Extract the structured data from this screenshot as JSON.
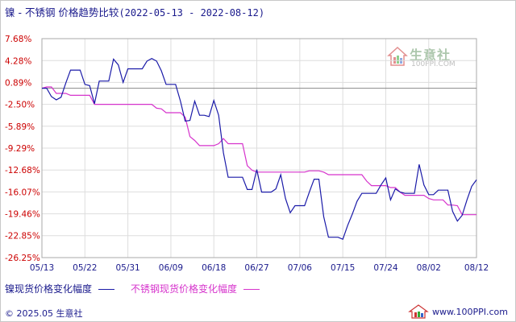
{
  "title": {
    "main": "镍 - 不锈钢 价格趋势比较",
    "range": "(2022-05-13 - 2022-08-12)"
  },
  "watermark": {
    "text": "生意社",
    "sub": "100PPI.COM"
  },
  "footer": {
    "copyright": "© 2025.05 生意社",
    "site": "www.100PPI.com"
  },
  "colors": {
    "nickel": "#1a1aa8",
    "stainless": "#d633cc",
    "tick_y": "#cc0000",
    "text": "#1a1a8c",
    "zero_line": "#888888",
    "grid": "#dddddd"
  },
  "chart_data": {
    "type": "line",
    "title": "镍 - 不锈钢 价格趋势比较",
    "xlabel": "",
    "ylabel": "",
    "y_ticks": [
      "7.68%",
      "4.28%",
      "0.89%",
      "-2.50%",
      "-5.89%",
      "-9.29%",
      "-12.68%",
      "-16.07%",
      "-19.46%",
      "-22.85%",
      "-26.25%"
    ],
    "y_tick_values": [
      7.68,
      4.28,
      0.89,
      -2.5,
      -5.89,
      -9.29,
      -12.68,
      -16.07,
      -19.46,
      -22.85,
      -26.25
    ],
    "ylim": [
      -26.25,
      7.68
    ],
    "x_ticks": [
      "05/13",
      "05/22",
      "05/31",
      "06/09",
      "06/18",
      "06/27",
      "07/06",
      "07/15",
      "07/24",
      "08/02",
      "08/12"
    ],
    "x_range": [
      "05/13",
      "08/12"
    ],
    "x_tick_days": [
      0,
      9,
      18,
      27,
      36,
      45,
      54,
      63,
      72,
      81,
      91
    ],
    "xlim_days": [
      0,
      91
    ],
    "zero_line": 0,
    "grid": true,
    "legend_position": "bottom",
    "series": [
      {
        "name": "镍现货价格变化幅度",
        "color": "#1a1aa8",
        "points": [
          [
            0,
            0
          ],
          [
            1,
            0
          ],
          [
            2,
            -1.3
          ],
          [
            3,
            -1.8
          ],
          [
            4,
            -1.4
          ],
          [
            5,
            0.8
          ],
          [
            6,
            2.8
          ],
          [
            7,
            2.8
          ],
          [
            8,
            2.8
          ],
          [
            9,
            0.6
          ],
          [
            10,
            0.4
          ],
          [
            11,
            -2.4
          ],
          [
            12,
            1.1
          ],
          [
            13,
            1.1
          ],
          [
            14,
            1.1
          ],
          [
            15,
            4.5
          ],
          [
            16,
            3.6
          ],
          [
            17,
            0.9
          ],
          [
            18,
            3.0
          ],
          [
            19,
            3.0
          ],
          [
            20,
            3.0
          ],
          [
            21,
            3.0
          ],
          [
            22,
            4.2
          ],
          [
            23,
            4.6
          ],
          [
            24,
            4.2
          ],
          [
            25,
            2.7
          ],
          [
            26,
            0.6
          ],
          [
            27,
            0.6
          ],
          [
            28,
            0.6
          ],
          [
            29,
            -2.0
          ],
          [
            30,
            -5.1
          ],
          [
            31,
            -5.0
          ],
          [
            32,
            -2.0
          ],
          [
            33,
            -4.2
          ],
          [
            34,
            -4.2
          ],
          [
            35,
            -4.4
          ],
          [
            36,
            -1.9
          ],
          [
            37,
            -4.2
          ],
          [
            38,
            -10.0
          ],
          [
            39,
            -13.8
          ],
          [
            40,
            -13.8
          ],
          [
            41,
            -13.8
          ],
          [
            42,
            -13.8
          ],
          [
            43,
            -15.7
          ],
          [
            44,
            -15.7
          ],
          [
            45,
            -12.6
          ],
          [
            46,
            -16.1
          ],
          [
            47,
            -16.1
          ],
          [
            48,
            -16.1
          ],
          [
            49,
            -15.6
          ],
          [
            50,
            -13.4
          ],
          [
            51,
            -17.1
          ],
          [
            52,
            -19.3
          ],
          [
            53,
            -18.2
          ],
          [
            54,
            -18.2
          ],
          [
            55,
            -18.2
          ],
          [
            56,
            -16.1
          ],
          [
            57,
            -14.1
          ],
          [
            58,
            -14.1
          ],
          [
            59,
            -19.9
          ],
          [
            60,
            -23.1
          ],
          [
            61,
            -23.1
          ],
          [
            62,
            -23.1
          ],
          [
            63,
            -23.4
          ],
          [
            64,
            -21.3
          ],
          [
            65,
            -19.5
          ],
          [
            66,
            -17.5
          ],
          [
            67,
            -16.3
          ],
          [
            68,
            -16.3
          ],
          [
            69,
            -16.3
          ],
          [
            70,
            -16.3
          ],
          [
            71,
            -15.0
          ],
          [
            72,
            -13.9
          ],
          [
            73,
            -17.3
          ],
          [
            74,
            -15.6
          ],
          [
            75,
            -16.1
          ],
          [
            76,
            -16.3
          ],
          [
            77,
            -16.3
          ],
          [
            78,
            -16.3
          ],
          [
            79,
            -11.8
          ],
          [
            80,
            -15.0
          ],
          [
            81,
            -16.5
          ],
          [
            82,
            -16.5
          ],
          [
            83,
            -15.8
          ],
          [
            84,
            -15.8
          ],
          [
            85,
            -15.8
          ],
          [
            86,
            -19.1
          ],
          [
            87,
            -20.6
          ],
          [
            88,
            -19.7
          ],
          [
            89,
            -17.3
          ],
          [
            90,
            -15.2
          ],
          [
            91,
            -14.2
          ]
        ]
      },
      {
        "name": "不锈钢现货价格变化幅度",
        "color": "#d633cc",
        "points": [
          [
            0,
            0
          ],
          [
            1,
            0.2
          ],
          [
            2,
            0.2
          ],
          [
            3,
            -0.8
          ],
          [
            4,
            -0.8
          ],
          [
            5,
            -0.8
          ],
          [
            6,
            -1.1
          ],
          [
            7,
            -1.1
          ],
          [
            8,
            -1.1
          ],
          [
            9,
            -1.1
          ],
          [
            10,
            -1.1
          ],
          [
            11,
            -2.5
          ],
          [
            12,
            -2.5
          ],
          [
            13,
            -2.5
          ],
          [
            14,
            -2.5
          ],
          [
            15,
            -2.5
          ],
          [
            16,
            -2.5
          ],
          [
            17,
            -2.5
          ],
          [
            18,
            -2.5
          ],
          [
            19,
            -2.5
          ],
          [
            20,
            -2.5
          ],
          [
            21,
            -2.5
          ],
          [
            22,
            -2.5
          ],
          [
            23,
            -2.5
          ],
          [
            24,
            -3.1
          ],
          [
            25,
            -3.2
          ],
          [
            26,
            -3.8
          ],
          [
            27,
            -3.8
          ],
          [
            28,
            -3.8
          ],
          [
            29,
            -3.8
          ],
          [
            30,
            -4.5
          ],
          [
            31,
            -7.5
          ],
          [
            32,
            -8.1
          ],
          [
            33,
            -8.9
          ],
          [
            34,
            -8.9
          ],
          [
            35,
            -8.9
          ],
          [
            36,
            -8.9
          ],
          [
            37,
            -8.6
          ],
          [
            38,
            -7.8
          ],
          [
            39,
            -8.6
          ],
          [
            40,
            -8.6
          ],
          [
            41,
            -8.6
          ],
          [
            42,
            -8.6
          ],
          [
            43,
            -12.0
          ],
          [
            44,
            -12.7
          ],
          [
            45,
            -13.0
          ],
          [
            46,
            -13.0
          ],
          [
            47,
            -13.0
          ],
          [
            48,
            -13.0
          ],
          [
            49,
            -13.0
          ],
          [
            50,
            -13.0
          ],
          [
            51,
            -13.0
          ],
          [
            52,
            -13.0
          ],
          [
            53,
            -13.0
          ],
          [
            54,
            -13.0
          ],
          [
            55,
            -13.0
          ],
          [
            56,
            -12.8
          ],
          [
            57,
            -12.8
          ],
          [
            58,
            -12.8
          ],
          [
            59,
            -13.0
          ],
          [
            60,
            -13.4
          ],
          [
            61,
            -13.4
          ],
          [
            62,
            -13.4
          ],
          [
            63,
            -13.4
          ],
          [
            64,
            -13.4
          ],
          [
            65,
            -13.4
          ],
          [
            66,
            -13.4
          ],
          [
            67,
            -13.4
          ],
          [
            68,
            -14.4
          ],
          [
            69,
            -15.1
          ],
          [
            70,
            -15.1
          ],
          [
            71,
            -15.1
          ],
          [
            72,
            -15.1
          ],
          [
            73,
            -15.4
          ],
          [
            74,
            -15.4
          ],
          [
            75,
            -16.1
          ],
          [
            76,
            -16.6
          ],
          [
            77,
            -16.6
          ],
          [
            78,
            -16.6
          ],
          [
            79,
            -16.6
          ],
          [
            80,
            -16.6
          ],
          [
            81,
            -17.1
          ],
          [
            82,
            -17.3
          ],
          [
            83,
            -17.3
          ],
          [
            84,
            -17.3
          ],
          [
            85,
            -18.1
          ],
          [
            86,
            -18.1
          ],
          [
            87,
            -18.2
          ],
          [
            88,
            -19.6
          ],
          [
            89,
            -19.6
          ],
          [
            90,
            -19.6
          ],
          [
            91,
            -19.6
          ]
        ]
      }
    ]
  }
}
